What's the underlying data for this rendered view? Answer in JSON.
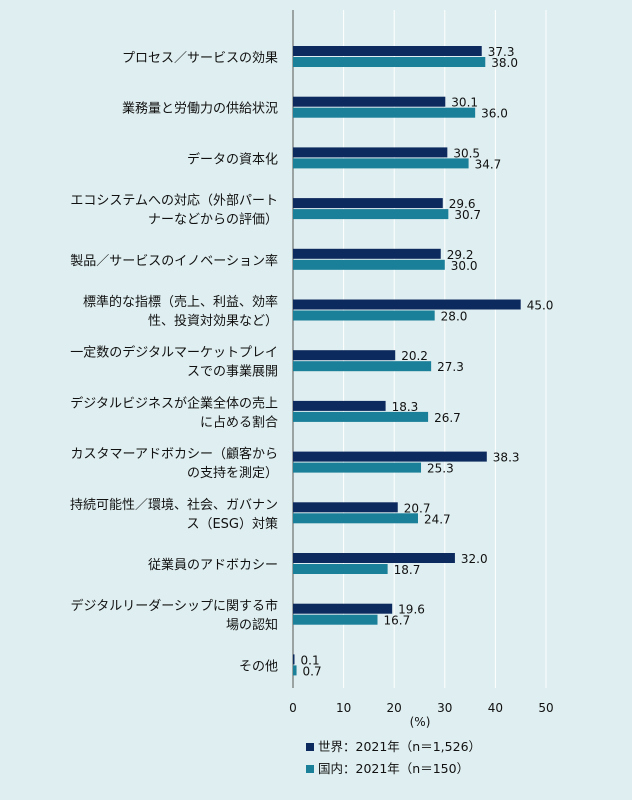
{
  "chart_data": {
    "type": "bar",
    "orientation": "horizontal",
    "categories": [
      [
        "プロセス／サービスの効果"
      ],
      [
        "業務量と労働力の供給状況"
      ],
      [
        "データの資本化"
      ],
      [
        "エコシステムへの対応（外部パート",
        "ナーなどからの評価）"
      ],
      [
        "製品／サービスのイノベーション率"
      ],
      [
        "標準的な指標（売上、利益、効率",
        "性、投資対効果など）"
      ],
      [
        "一定数のデジタルマーケットプレイ",
        "スでの事業展開"
      ],
      [
        "デジタルビジネスが企業全体の売上",
        "に占める割合"
      ],
      [
        "カスタマーアドボカシー（顧客から",
        "の支持を測定）"
      ],
      [
        "持続可能性／環境、社会、ガバナン",
        "ス（ESG）対策"
      ],
      [
        "従業員のアドボカシー"
      ],
      [
        "デジタルリーダーシップに関する市",
        "場の認知"
      ],
      [
        "その他"
      ]
    ],
    "series": [
      {
        "name": "世界：2021年（n＝1,526）",
        "color": "#0d2a5e",
        "values": [
          37.3,
          30.1,
          30.5,
          29.6,
          29.2,
          45.0,
          20.2,
          18.3,
          38.3,
          20.7,
          32.0,
          19.6,
          0.1
        ],
        "labels": [
          "37.3",
          "30.1",
          "30.5",
          "29.6",
          "29.2",
          "45.0",
          "20.2",
          "18.3",
          "38.3",
          "20.7",
          "32.0",
          "19.6",
          "0.1"
        ]
      },
      {
        "name": "国内：2021年（n＝150）",
        "color": "#1a7f98",
        "values": [
          38.0,
          36.0,
          34.7,
          30.7,
          30.0,
          28.0,
          27.3,
          26.7,
          25.3,
          24.7,
          18.7,
          16.7,
          0.7
        ],
        "labels": [
          "38.0",
          "36.0",
          "34.7",
          "30.7",
          "30.0",
          "28.0",
          "27.3",
          "26.7",
          "25.3",
          "24.7",
          "18.7",
          "16.7",
          "0.7"
        ]
      }
    ],
    "xlim": [
      0,
      50
    ],
    "xticks": [
      "0",
      "10",
      "20",
      "30",
      "40",
      "50"
    ],
    "xlabel": "(%)",
    "grid": true,
    "legend_position": "bottom"
  }
}
